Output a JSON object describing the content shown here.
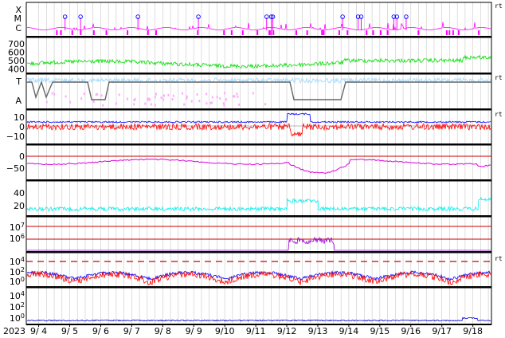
{
  "chart_data": [
    {
      "type": "scatter",
      "panel": "flare-class",
      "ylabels": [
        "X",
        "M",
        "C"
      ],
      "colors": {
        "series": "#ff00ff",
        "markers": "#0000ff"
      },
      "flare_days": [
        4.85,
        5.35,
        7.2,
        9.15,
        11.35,
        11.5,
        11.55,
        13.8,
        14.3,
        14.4,
        15.45,
        15.55,
        15.85
      ]
    },
    {
      "type": "line",
      "panel": "solar-wind-speed",
      "yticks": [
        "700",
        "600",
        "500",
        "400"
      ],
      "ylim": [
        350,
        750
      ],
      "colors": {
        "series": "#00dd00"
      }
    },
    {
      "type": "line",
      "panel": "imf-sector",
      "ylabels": [
        "T",
        "A"
      ],
      "colors": {
        "series": "#aaddff",
        "secondary": "#ffaaff",
        "sector": "#666666"
      }
    },
    {
      "type": "line",
      "panel": "imf-bz",
      "yticks": [
        "10",
        "0",
        "−10"
      ],
      "ylim": [
        -16,
        18
      ],
      "colors": {
        "bt": "#0000ff",
        "bz": "#ff0000"
      }
    },
    {
      "type": "line",
      "panel": "dst",
      "yticks": [
        "0",
        "−50"
      ],
      "ylim": [
        -70,
        15
      ],
      "colors": {
        "series": "#dd00dd",
        "baseline": "#cc0000"
      }
    },
    {
      "type": "line",
      "panel": "kp",
      "yticks": [
        "40",
        "20"
      ],
      "ylim": [
        0,
        50
      ],
      "colors": {
        "series": "#00eeee"
      }
    },
    {
      "type": "line",
      "panel": "electron-flux",
      "yticks": [
        "10^7",
        "10^6"
      ],
      "colors": {
        "series": "#9900cc",
        "threshold": "#cc0000"
      }
    },
    {
      "type": "line",
      "panel": "proton-flux",
      "yticks": [
        "10^4",
        "10^2",
        "10^0"
      ],
      "colors": {
        "high": "#0000ff",
        "low": "#ff0000",
        "threshold": "#cc0000"
      }
    },
    {
      "type": "line",
      "panel": "neutron",
      "yticks": [
        "10^4",
        "10^2",
        "10^0"
      ],
      "colors": {
        "series": "#0000cc"
      }
    }
  ],
  "xaxis": {
    "year": "2023",
    "ticks": [
      "9/ 4",
      "9/ 5",
      "9/ 6",
      "9/ 7",
      "9/ 8",
      "9/ 9",
      "9/10",
      "9/11",
      "9/12",
      "9/13",
      "9/14",
      "9/15",
      "9/16",
      "9/17",
      "9/18"
    ]
  },
  "rt_label": "rt"
}
